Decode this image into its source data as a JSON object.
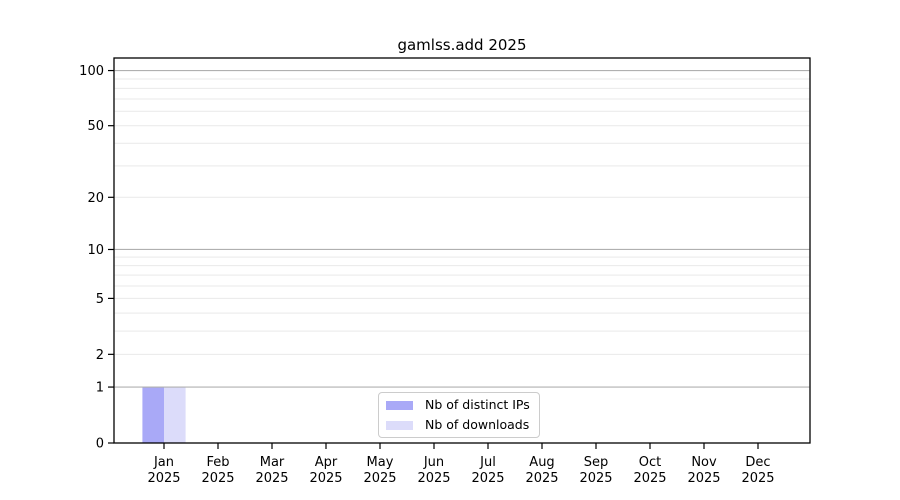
{
  "chart_data": {
    "type": "bar",
    "title": "gamlss.add 2025",
    "categories": [
      "Jan",
      "Feb",
      "Mar",
      "Apr",
      "May",
      "Jun",
      "Jul",
      "Aug",
      "Sep",
      "Oct",
      "Nov",
      "Dec"
    ],
    "x_tick_year": "2025",
    "series": [
      {
        "name": "Nb of distinct IPs",
        "color": "#a9a9f7",
        "values": [
          1,
          0,
          0,
          0,
          0,
          0,
          0,
          0,
          0,
          0,
          0,
          0
        ]
      },
      {
        "name": "Nb of downloads",
        "color": "#dcdcfa",
        "values": [
          1,
          0,
          0,
          0,
          0,
          0,
          0,
          0,
          0,
          0,
          0,
          0
        ]
      }
    ],
    "y_axis": {
      "scale": "log1p",
      "ticks": [
        0,
        1,
        2,
        5,
        10,
        20,
        50,
        100
      ],
      "max": 117,
      "major_gridlines": [
        1,
        10,
        100
      ],
      "minor_gridlines": [
        2,
        3,
        4,
        5,
        6,
        7,
        8,
        9,
        20,
        30,
        40,
        50,
        60,
        70,
        80,
        90
      ]
    },
    "legend": {
      "position": "bottom-center"
    },
    "colors": {
      "background": "#ffffff",
      "axis": "#000000",
      "text": "#000000",
      "major_grid": "#b0b0b0",
      "minor_grid": "#e9e9e9",
      "legend_border": "#cccccc"
    }
  }
}
